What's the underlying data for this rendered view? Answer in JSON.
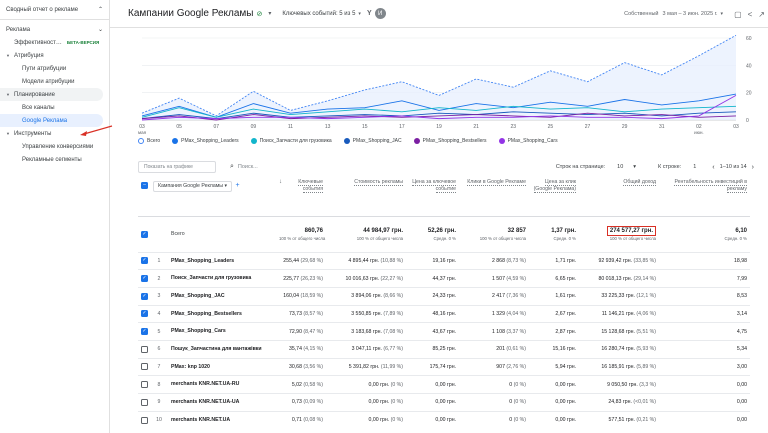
{
  "sidebar": {
    "title": "Сводный отчет о рекламе",
    "sections": [
      {
        "label": "Реклама"
      },
      {
        "label": "Эффективност…",
        "badge": "БЕТА-ВЕРСИЯ"
      },
      {
        "label": "Атрибуция"
      },
      {
        "label": "Пути атрибуции"
      },
      {
        "label": "Модели атрибуции"
      },
      {
        "label": "Планирование"
      },
      {
        "label": "Все каналы"
      },
      {
        "label": "Google Реклама"
      },
      {
        "label": "Инструменты"
      },
      {
        "label": "Управление конверсиями"
      },
      {
        "label": "Рекламные сегменты"
      }
    ]
  },
  "header": {
    "title": "Кампании Google Рекламы",
    "events": "Ключевых событий: 5 из 5",
    "avatar": "И",
    "date_label": "Собственный",
    "date_range": "3 мая – 3 июн. 2025 г."
  },
  "chart_data": {
    "type": "line",
    "x": [
      "03",
      "05",
      "07",
      "09",
      "11",
      "13",
      "15",
      "17",
      "19",
      "21",
      "23",
      "25",
      "27",
      "29",
      "31",
      "02",
      "03"
    ],
    "x_sub": {
      "0": "мая",
      "15": "июн."
    },
    "y_right_ticks": [
      "60",
      "40",
      "20",
      "0"
    ],
    "ylim": [
      0,
      60
    ],
    "series": [
      {
        "name": "Всего",
        "color": "#4285f4",
        "dashed": true,
        "values": [
          5,
          16,
          3,
          21,
          7,
          14,
          22,
          28,
          18,
          30,
          24,
          36,
          28,
          42,
          33,
          47,
          62
        ]
      },
      {
        "name": "PMax_Shopping_Leaders",
        "color": "#1a73e8",
        "values": [
          3,
          10,
          2,
          12,
          5,
          8,
          9,
          14,
          7,
          12,
          9,
          13,
          10,
          15,
          11,
          14,
          19
        ]
      },
      {
        "name": "Поиск_Запчасти для грузовика",
        "color": "#12b5cb",
        "values": [
          2,
          9,
          2,
          8,
          4,
          6,
          8,
          6,
          9,
          7,
          10,
          8,
          9,
          6,
          8,
          9,
          10
        ]
      },
      {
        "name": "PMax_Shopping_JAC",
        "color": "#185abc",
        "values": [
          1,
          4,
          1,
          5,
          2,
          3,
          4,
          3,
          5,
          4,
          6,
          5,
          4,
          5,
          3,
          5,
          6
        ]
      },
      {
        "name": "PMax_Shopping_Bestsellers",
        "color": "#7b1fa2",
        "values": [
          1,
          3,
          0,
          4,
          1,
          2,
          3,
          2,
          3,
          4,
          3,
          2,
          5,
          3,
          4,
          2,
          3
        ]
      },
      {
        "name": "PMax_Shopping_Cars",
        "color": "#9334e6",
        "values": [
          0,
          2,
          1,
          2,
          2,
          1,
          2,
          3,
          1,
          2,
          2,
          3,
          2,
          2,
          1,
          3,
          18
        ]
      }
    ]
  },
  "toolbar": {
    "search_placeholder": "Поиск...",
    "graph_button": "Показать на графике",
    "rows_label": "Строк на странице:",
    "rows_value": "10",
    "go_label": "К строке:",
    "go_value": "1",
    "range": "1–10 из 14"
  },
  "table": {
    "dimension_header": "Кампания Google Рекламы",
    "columns": [
      "Ключевые события",
      "Стоимость рекламы",
      "Цена за ключевое событие",
      "Клики в Google Рекламе",
      "Цена за клик (Google Рекламa)",
      "Общий доход",
      "Рентабельность инвестиций в рекламу"
    ],
    "totals": {
      "label": "Всего",
      "values": [
        "860,76",
        "44 984,97 грн.",
        "52,26 грн.",
        "32 857",
        "1,37 грн.",
        "274 577,27 грн.",
        "6,10"
      ],
      "subs": [
        "100 % от общего числа",
        "100 % от общего числа",
        "Средн. 0 %",
        "100 % от общего числа",
        "Средн. 0 %",
        "100 % от общего числа",
        "Средн. 0 %"
      ]
    },
    "rows": [
      {
        "n": "1",
        "checked": true,
        "name": "PMax_Shopping_Leaders",
        "c": [
          "255,44",
          "(29,68 %)",
          "4 895,44 грн.",
          "(10,88 %)",
          "19,16 грн.",
          "2 868",
          "(8,73 %)",
          "1,71 грн.",
          "92 939,42 грн.",
          "(33,85 %)",
          "18,98"
        ]
      },
      {
        "n": "2",
        "checked": true,
        "name": "Поиск_Запчасти для грузовика",
        "c": [
          "225,77",
          "(26,23 %)",
          "10 016,63 грн.",
          "(22,27 %)",
          "44,37 грн.",
          "1 507",
          "(4,59 %)",
          "6,65 грн.",
          "80 018,13 грн.",
          "(29,14 %)",
          "7,99"
        ]
      },
      {
        "n": "3",
        "checked": true,
        "name": "PMax_Shopping_JAC",
        "c": [
          "160,04",
          "(18,59 %)",
          "3 894,06 грн.",
          "(8,66 %)",
          "24,33 грн.",
          "2 417",
          "(7,36 %)",
          "1,61 грн.",
          "33 225,33 грн.",
          "(12,1 %)",
          "8,53"
        ]
      },
      {
        "n": "4",
        "checked": true,
        "name": "PMax_Shopping_Bestsellers",
        "c": [
          "73,73",
          "(8,57 %)",
          "3 550,85 грн.",
          "(7,89 %)",
          "48,16 грн.",
          "1 329",
          "(4,04 %)",
          "2,67 грн.",
          "11 146,21 грн.",
          "(4,06 %)",
          "3,14"
        ]
      },
      {
        "n": "5",
        "checked": true,
        "name": "PMax_Shopping_Cars",
        "c": [
          "72,90",
          "(8,47 %)",
          "3 183,68 грн.",
          "(7,08 %)",
          "43,67 грн.",
          "1 108",
          "(3,37 %)",
          "2,87 грн.",
          "15 128,68 грн.",
          "(5,51 %)",
          "4,75"
        ]
      },
      {
        "n": "6",
        "checked": false,
        "name": "Пошук_Запчастина для вантажівки",
        "c": [
          "35,74",
          "(4,15 %)",
          "3 047,11 грн.",
          "(6,77 %)",
          "85,25 грн.",
          "201",
          "(0,61 %)",
          "15,16 грн.",
          "16 280,74 грн.",
          "(5,93 %)",
          "5,34"
        ]
      },
      {
        "n": "7",
        "checked": false,
        "name": "PMax: knp 1020",
        "c": [
          "30,68",
          "(3,56 %)",
          "5 391,82 грн.",
          "(11,99 %)",
          "175,74 грн.",
          "907",
          "(2,76 %)",
          "5,94 грн.",
          "16 185,91 грн.",
          "(5,89 %)",
          "3,00"
        ]
      },
      {
        "n": "8",
        "checked": false,
        "name": "merchants KNR.NET.UA-RU",
        "c": [
          "5,02",
          "(0,58 %)",
          "0,00 грн.",
          "(0 %)",
          "0,00 грн.",
          "0",
          "(0 %)",
          "0,00 грн.",
          "9 050,50 грн.",
          "(3,3 %)",
          "0,00"
        ]
      },
      {
        "n": "9",
        "checked": false,
        "name": "merchants KNR.NET.UA-UA",
        "c": [
          "0,73",
          "(0,09 %)",
          "0,00 грн.",
          "(0 %)",
          "0,00 грн.",
          "0",
          "(0 %)",
          "0,00 грн.",
          "24,83 грн.",
          "(<0,01 %)",
          "0,00"
        ]
      },
      {
        "n": "10",
        "checked": false,
        "name": "merchants KNR.NET.UA",
        "c": [
          "0,71",
          "(0,08 %)",
          "0,00 грн.",
          "(0 %)",
          "0,00 грн.",
          "0",
          "(0 %)",
          "0,00 грн.",
          "577,51 грн.",
          "(0,21 %)",
          "0,00"
        ]
      }
    ]
  }
}
